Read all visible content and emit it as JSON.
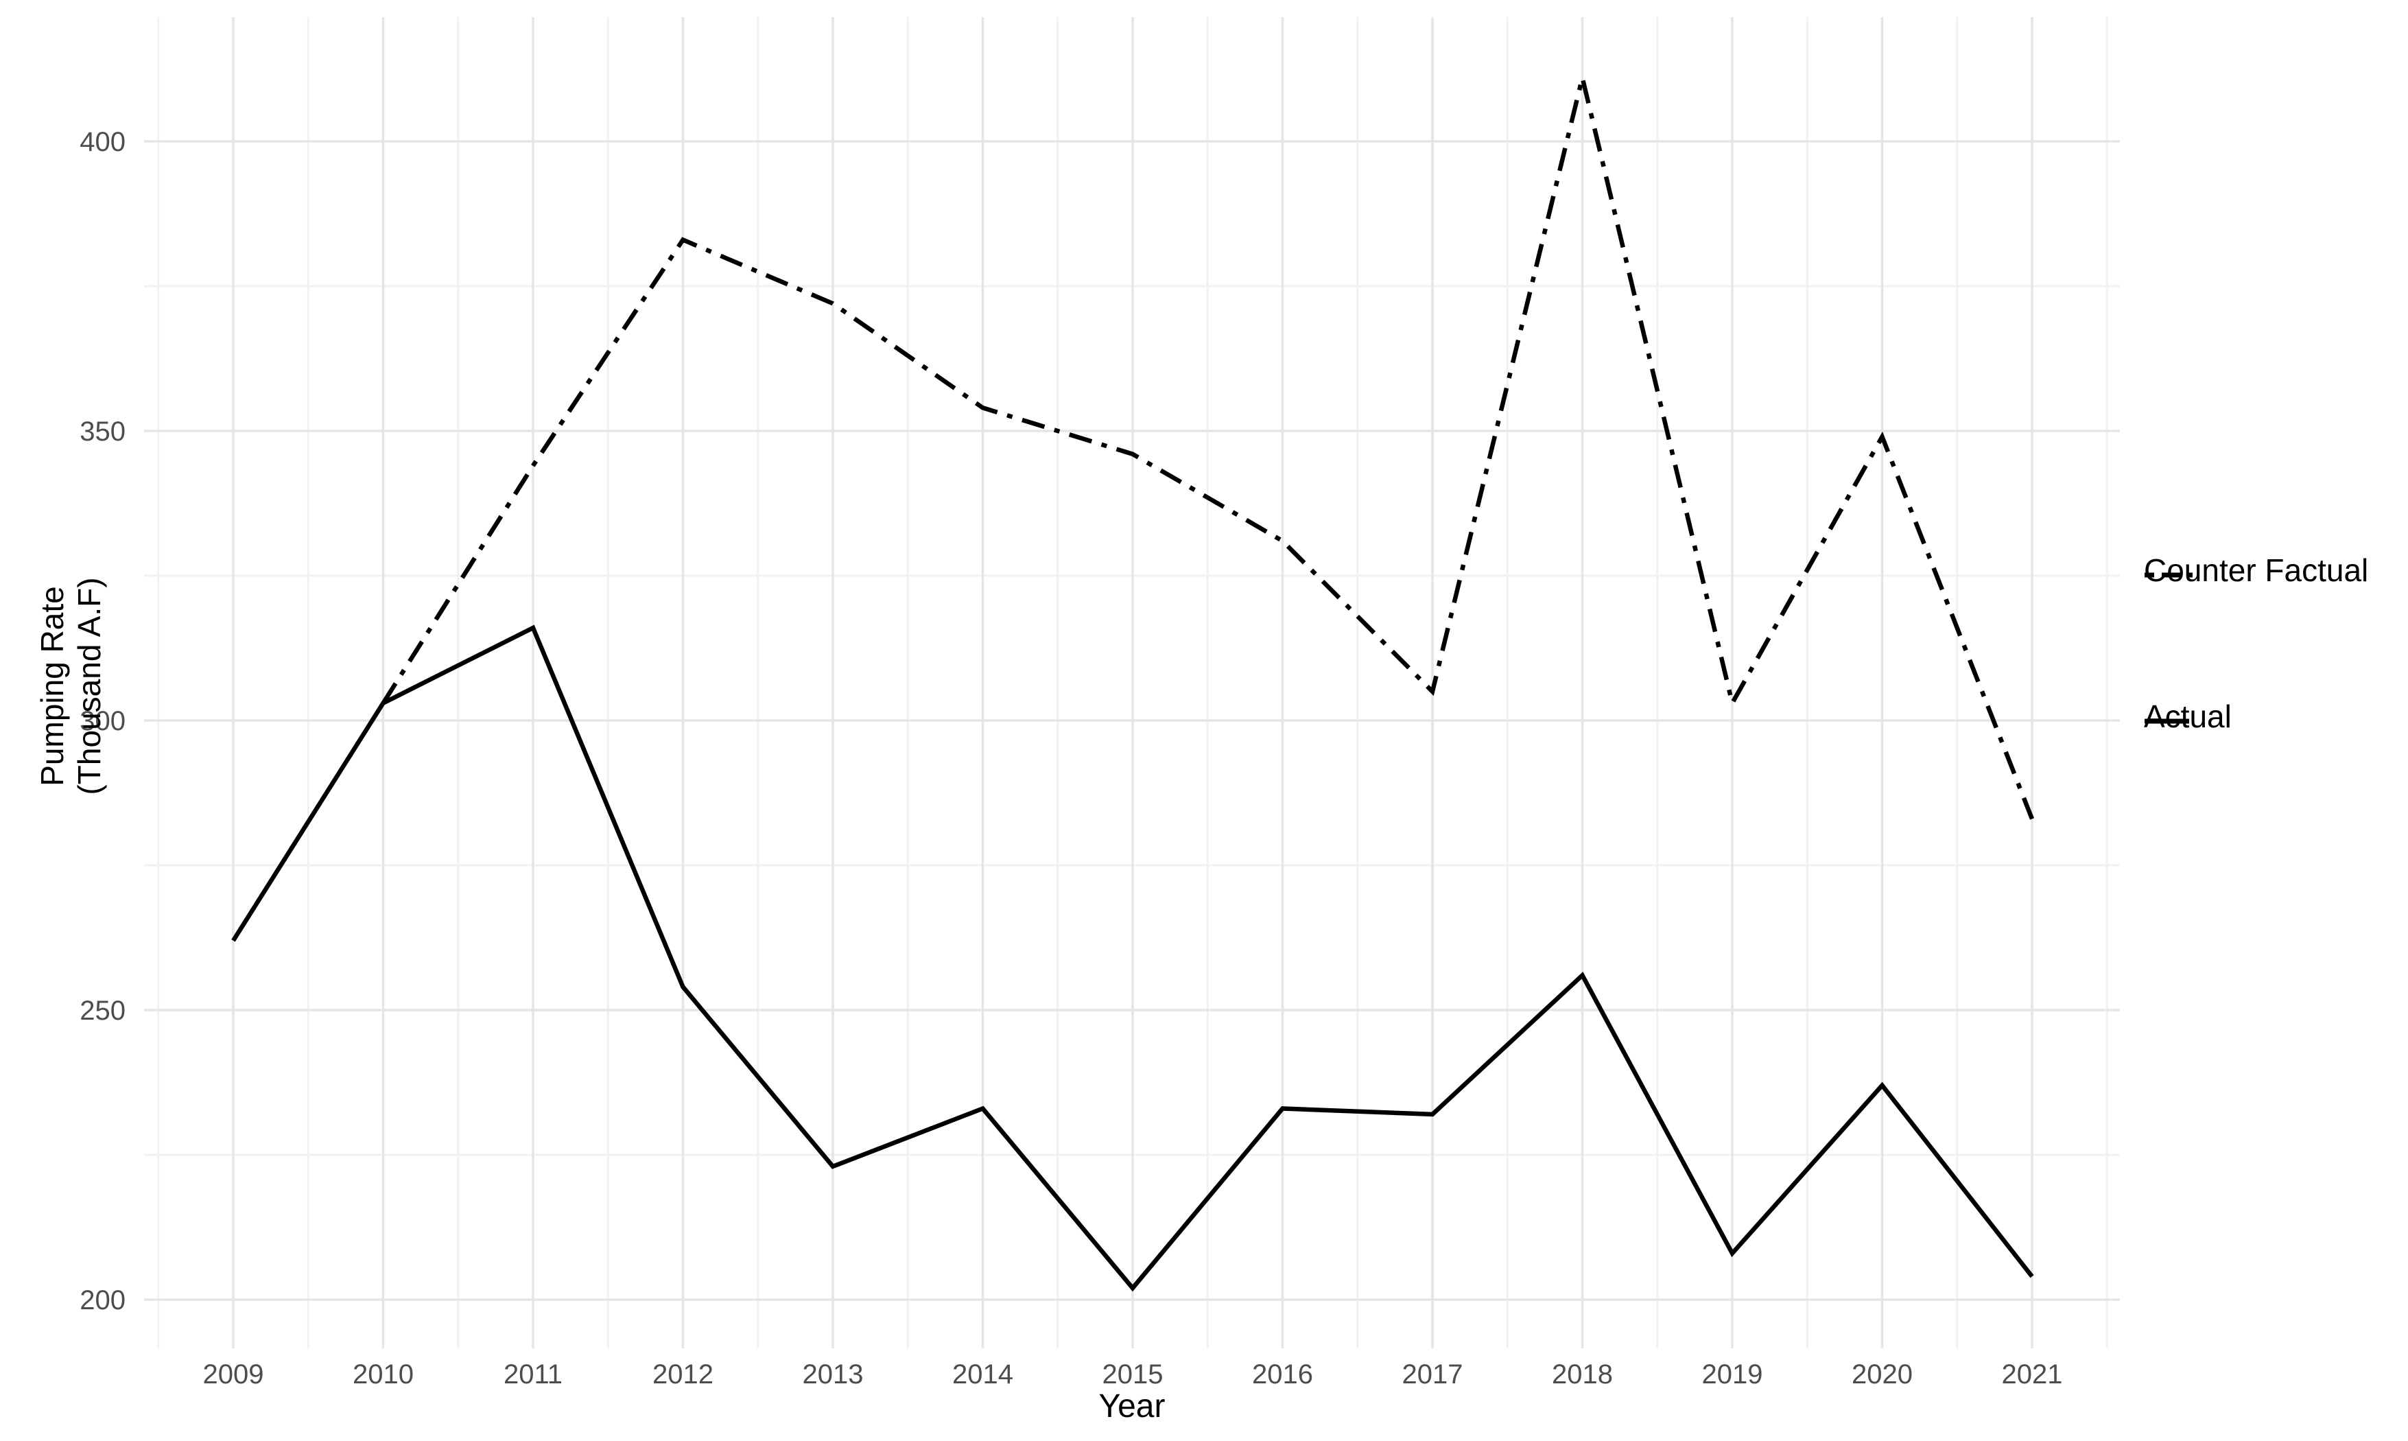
{
  "chart_data": {
    "type": "line",
    "title": "",
    "xlabel": "Year",
    "ylabel": "Pumping Rate (Thousand A.F)",
    "ylabel_lines": [
      "Pumping Rate",
      "(Thousand A.F)"
    ],
    "categories": [
      2009,
      2010,
      2011,
      2012,
      2013,
      2014,
      2015,
      2016,
      2017,
      2018,
      2019,
      2020,
      2021
    ],
    "series": [
      {
        "name": "Counter Factual",
        "style": "dashdot",
        "values": [
          null,
          303,
          344,
          383,
          372,
          354,
          346,
          331,
          305,
          411,
          303,
          349,
          283
        ]
      },
      {
        "name": "Actual",
        "style": "solid",
        "values": [
          262,
          303,
          316,
          254,
          223,
          233,
          202,
          233,
          232,
          256,
          208,
          237,
          204
        ]
      }
    ],
    "y_ticks": [
      200,
      250,
      300,
      350,
      400
    ],
    "y_minor_ticks": [
      225,
      275,
      325,
      375
    ],
    "ylim": [
      191.5,
      421.5
    ],
    "grid": "on",
    "legend_position": "right",
    "line_color": "#000000",
    "background_color": "#ffffff",
    "tick_label_color": "#4D4D4D",
    "grid_major_color": "#E5E5E5",
    "grid_minor_color": "#F1F1F1"
  },
  "legend": {
    "items": [
      {
        "label": "Counter Factual",
        "style": "dashdot"
      },
      {
        "label": "Actual",
        "style": "solid"
      }
    ]
  }
}
